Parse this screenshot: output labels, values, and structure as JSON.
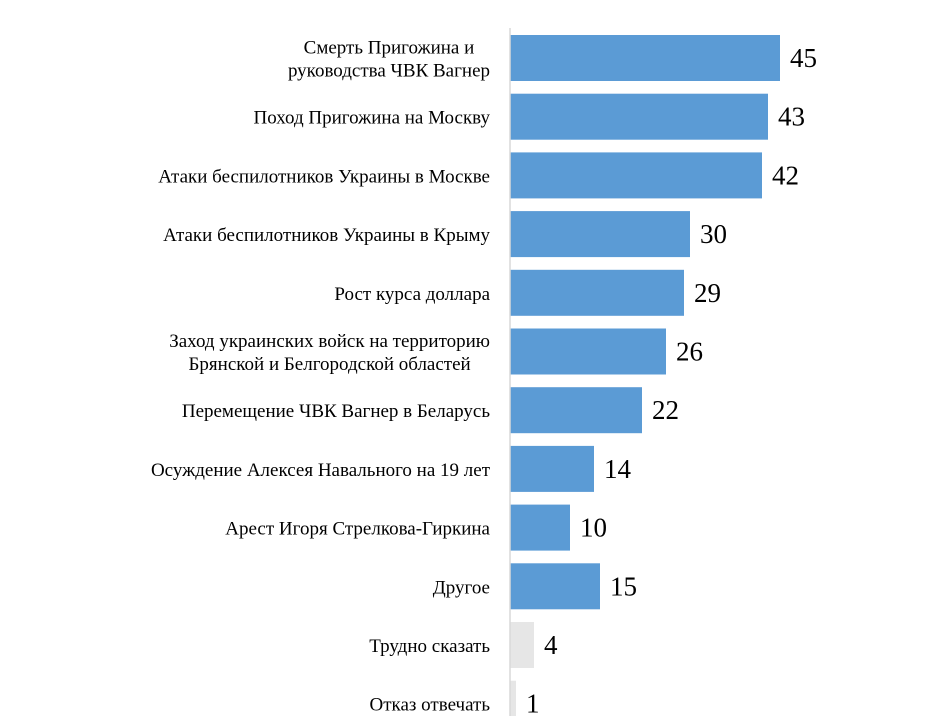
{
  "chart_data": {
    "type": "bar",
    "orientation": "horizontal",
    "categories": [
      "Смерть Пригожина и руководства ЧВК Вагнер",
      "Поход Пригожина на Москву",
      "Атаки беспилотников Украины в Москве",
      "Атаки беспилотников Украины в Крыму",
      "Рост курса доллара",
      "Заход украинских войск на территорию Брянской и Белгородской областей",
      "Перемещение ЧВК Вагнер в Беларусь",
      "Осуждение Алексея Навального на 19 лет",
      "Арест Игоря Стрелкова-Гиркина",
      "Другое",
      "Трудно сказать",
      "Отказ отвечать"
    ],
    "category_lines": [
      [
        "Смерть Пригожина и",
        "руководства ЧВК Вагнер"
      ],
      [
        "Поход Пригожина на Москву"
      ],
      [
        "Атаки беспилотников Украины в Москве"
      ],
      [
        "Атаки беспилотников Украины в Крыму"
      ],
      [
        "Рост курса доллара"
      ],
      [
        "Заход украинских войск на территорию",
        "Брянской и Белгородской областей"
      ],
      [
        "Перемещение ЧВК Вагнер в Беларусь"
      ],
      [
        "Осуждение Алексея Навального на 19 лет"
      ],
      [
        "Арест Игоря Стрелкова-Гиркина"
      ],
      [
        "Другое"
      ],
      [
        "Трудно сказать"
      ],
      [
        "Отказ отвечать"
      ]
    ],
    "values": [
      45,
      43,
      42,
      30,
      29,
      26,
      22,
      14,
      10,
      15,
      4,
      1
    ],
    "bar_colors": [
      "#5b9bd5",
      "#5b9bd5",
      "#5b9bd5",
      "#5b9bd5",
      "#5b9bd5",
      "#5b9bd5",
      "#5b9bd5",
      "#5b9bd5",
      "#5b9bd5",
      "#5b9bd5",
      "#e6e6e6",
      "#e6e6e6"
    ],
    "axis_color": "#d9d9d9",
    "xlim": [
      0,
      55
    ],
    "grid": false,
    "legend": "none"
  }
}
